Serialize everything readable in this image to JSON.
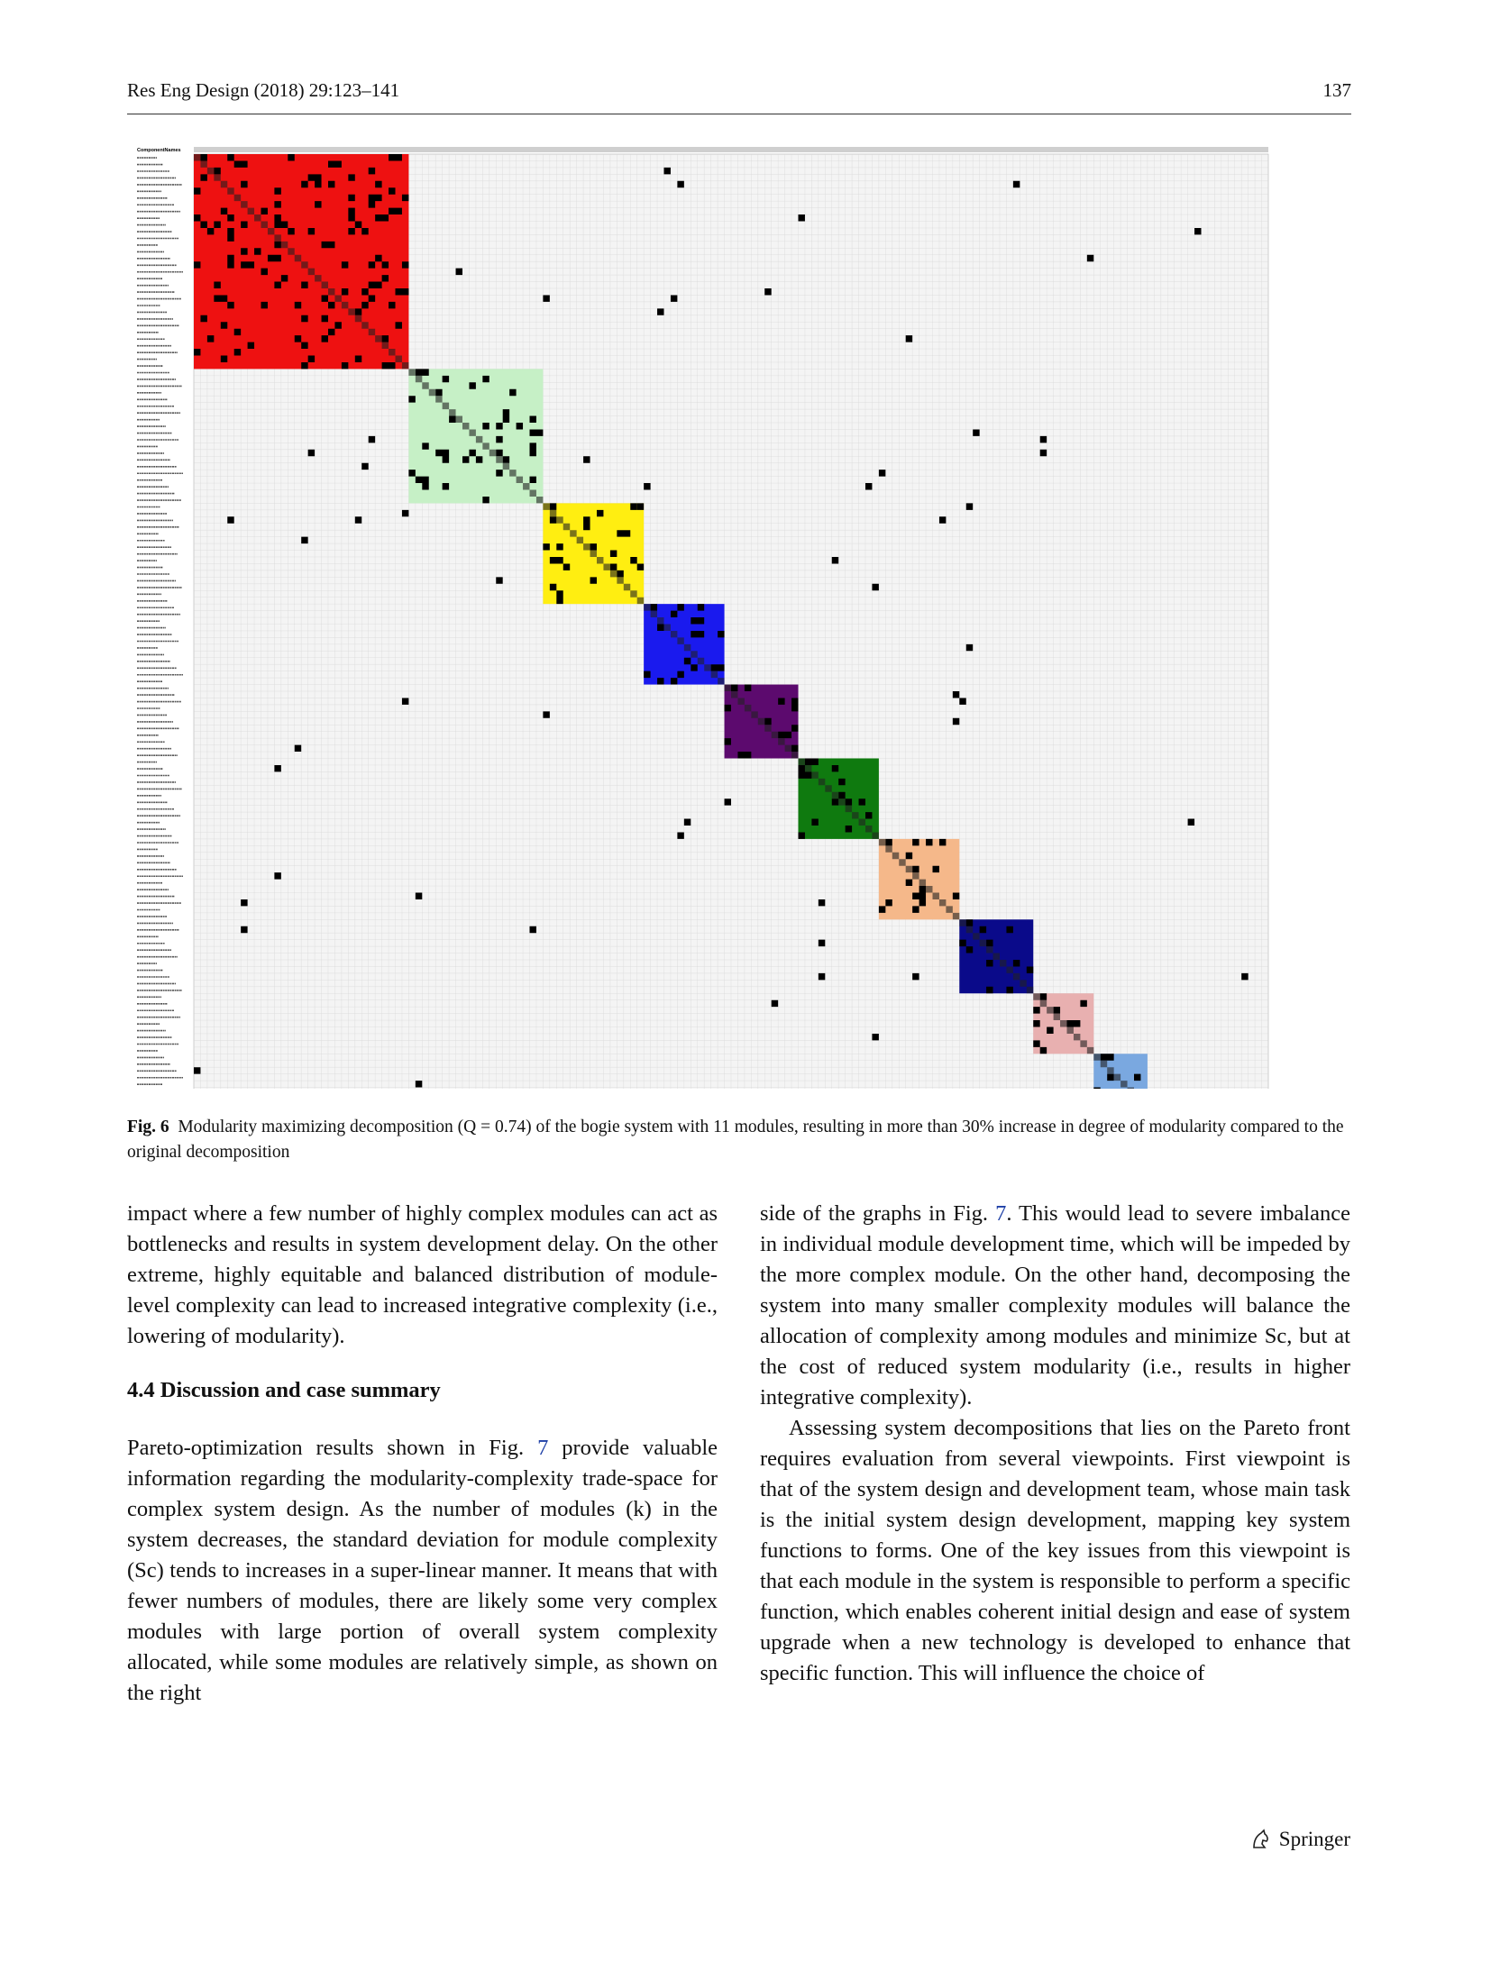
{
  "header": {
    "journal": "Res Eng Design (2018) 29:123–141",
    "page_number": "137"
  },
  "figure": {
    "label": "Fig. 6",
    "caption": "Modularity maximizing decomposition (Q = 0.74) of the bogie system with 11 modules, resulting in more than 30% increase in degree of modularity compared to the original decomposition",
    "corner_label": "ComponentNames",
    "module_colors": [
      "#ee1111",
      "#c6f0c6",
      "#ffee11",
      "#1a1aee",
      "#5c0a6e",
      "#0f7a0f",
      "#f5b88a",
      "#0a0a8a",
      "#e8b0b0",
      "#7aa8e0",
      "#6a6a6a"
    ]
  },
  "body": {
    "left_para1": "impact where a few number of highly complex modules can act as bottlenecks and results in system development delay. On the other extreme, highly equitable and balanced distribution of module-level complexity can lead to increased integrative complexity (i.e., lowering of modularity).",
    "section_title": "4.4  Discussion and case summary",
    "left_para2_a": "Pareto-optimization results shown in Fig. ",
    "left_para2_ref": "7",
    "left_para2_b": " provide valuable information regarding the modularity-complexity trade-space for complex system design. As the number of modules (k) in the system decreases, the standard deviation for module complexity (Sc) tends to increases in a super-linear manner. It means that with fewer numbers of modules, there are likely some very complex modules with large portion of overall system complexity allocated, while some modules are relatively simple, as shown on the right",
    "right_para1_a": "side of the graphs in Fig. ",
    "right_para1_ref": "7",
    "right_para1_b": ". This would lead to severe imbalance in individual module development time, which will be impeded by the more complex module. On the other hand, decomposing the system into many smaller complexity modules will balance the allocation of complexity among modules and minimize Sc, but at the cost of reduced system modularity (i.e., results in higher integrative complexity).",
    "right_para2": "Assessing system decompositions that lies on the Pareto front requires evaluation from several viewpoints. First viewpoint is that of the system design and development team, whose main task is the initial system design development, mapping key system functions to forms. One of the key issues from this viewpoint is that each module in the system is responsible to perform a specific function, which enables coherent initial design and ease of system upgrade when a new technology is developed to enhance that specific function. This will influence the choice of"
  },
  "footer": {
    "publisher": "Springer",
    "logo_icon": "springer-horse-icon"
  }
}
